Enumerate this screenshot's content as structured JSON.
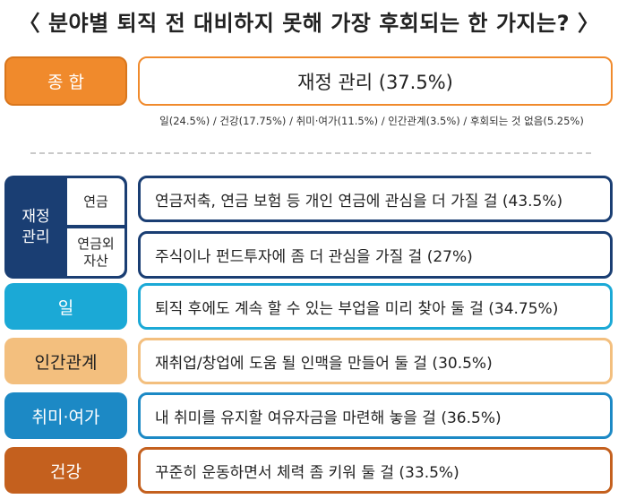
{
  "title": "〈 분야별 퇴직 전 대비하지 못해 가장 후회되는 한 가지는? 〉",
  "summary": {
    "label": "종 합",
    "answer": "재정 관리 (37.5%)",
    "note": "일(24.5%) / 건강(17.75%) / 취미·여가(11.5%) / 인간관계(3.5%) / 후회되는 것 없음(5.25%)"
  },
  "finance": {
    "label_line1": "재정",
    "label_line2": "관리",
    "sub1": "연금",
    "sub2_line1": "연금외",
    "sub2_line2": "자산",
    "answer1": "연금저축, 연금 보험 등 개인 연금에 관심을 더 가질 걸 (43.5%)",
    "answer2": "주식이나 펀드투자에 좀 더 관심을 가질 걸 (27%)"
  },
  "rows": [
    {
      "label": "일",
      "answer": "퇴직 후에도 계속 할 수 있는 부업을 미리 찾아 둘 걸 (34.75%)"
    },
    {
      "label": "인간관계",
      "answer": "재취업/창업에 도움 될 인맥을 만들어 둘 걸 (30.5%)"
    },
    {
      "label": "취미·여가",
      "answer": "내 취미를 유지할 여유자금을 마련해 놓을 걸 (36.5%)"
    },
    {
      "label": "건강",
      "answer": "꾸준히 운동하면서 체력 좀 키워 둘 걸 (33.5%)"
    }
  ],
  "colors": {
    "summary": "#f08a2c",
    "finance": "#1a3e73",
    "work": "#1ba9d6",
    "relationship": "#f3bf7e",
    "hobby": "#1c89c5",
    "health": "#c4601e"
  },
  "chart_data": {
    "type": "table",
    "title": "분야별 퇴직 전 대비하지 못해 가장 후회되는 한 가지는?",
    "overall": [
      {
        "category": "재정 관리",
        "value": 37.5
      },
      {
        "category": "일",
        "value": 24.5
      },
      {
        "category": "건강",
        "value": 17.75
      },
      {
        "category": "취미·여가",
        "value": 11.5
      },
      {
        "category": "인간관계",
        "value": 3.5
      },
      {
        "category": "후회되는 것 없음",
        "value": 5.25
      }
    ],
    "by_category": [
      {
        "category": "재정 관리 - 연금",
        "regret": "연금저축, 연금 보험 등 개인 연금에 관심을 더 가질 걸",
        "value": 43.5
      },
      {
        "category": "재정 관리 - 연금외 자산",
        "regret": "주식이나 펀드투자에 좀 더 관심을 가질 걸",
        "value": 27
      },
      {
        "category": "일",
        "regret": "퇴직 후에도 계속 할 수 있는 부업을 미리 찾아 둘 걸",
        "value": 34.75
      },
      {
        "category": "인간관계",
        "regret": "재취업/창업에 도움 될 인맥을 만들어 둘 걸",
        "value": 30.5
      },
      {
        "category": "취미·여가",
        "regret": "내 취미를 유지할 여유자금을 마련해 놓을 걸",
        "value": 36.5
      },
      {
        "category": "건강",
        "regret": "꾸준히 운동하면서 체력 좀 키워 둘 걸",
        "value": 33.5
      }
    ]
  }
}
